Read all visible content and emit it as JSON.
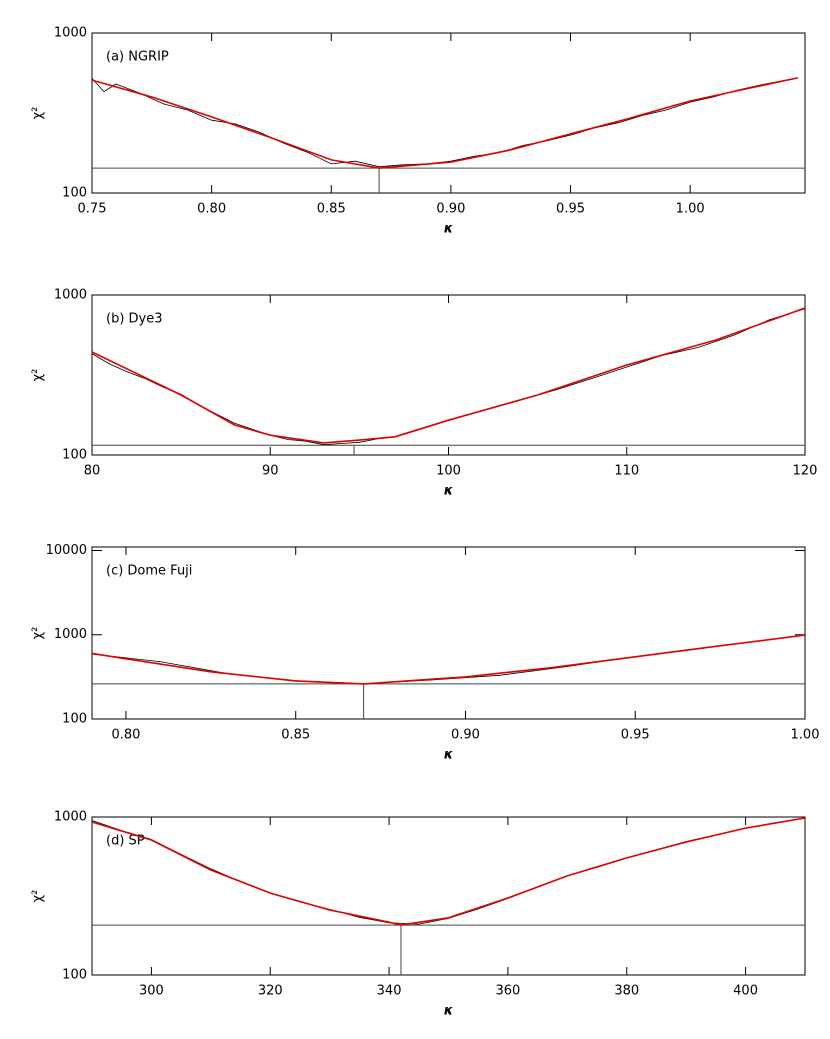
{
  "chart_data": [
    {
      "type": "line",
      "title": "(a) NGRIP",
      "xlabel": "κ",
      "ylabel": "χ²",
      "log_y": true,
      "xlim": [
        0.75,
        1.048
      ],
      "xticks": [
        0.75,
        {
          "value": 0.8,
          "label": "0.80"
        },
        0.85,
        {
          "value": 0.9,
          "label": "0.90"
        },
        0.95,
        {
          "value": 1,
          "label": "1.00"
        }
      ],
      "ylim": [
        100,
        1000
      ],
      "yticks": [
        100,
        1000
      ],
      "min_chi2": 143,
      "best_kappa": 0.87,
      "series": [
        {
          "color": "#000000",
          "x": [
            0.75,
            0.755,
            0.76,
            0.77,
            0.78,
            0.79,
            0.8,
            0.81,
            0.82,
            0.83,
            0.84,
            0.85,
            0.86,
            0.87,
            0.88,
            0.89,
            0.9,
            0.91,
            0.92,
            0.93,
            0.94,
            0.95,
            0.96,
            0.97,
            0.98,
            0.99,
            1.0,
            1.01,
            1.02,
            1.03,
            1.045
          ],
          "values": [
            520,
            430,
            480,
            420,
            360,
            330,
            285,
            270,
            240,
            205,
            180,
            152,
            158,
            146,
            150,
            152,
            158,
            170,
            178,
            198,
            212,
            230,
            255,
            275,
            305,
            330,
            370,
            400,
            440,
            475,
            525
          ]
        },
        {
          "color": "#e00000",
          "x": [
            0.75,
            0.775,
            0.8,
            0.825,
            0.85,
            0.87,
            0.9,
            0.925,
            0.95,
            0.975,
            1.0,
            1.025,
            1.045
          ],
          "values": [
            508,
            398,
            299,
            221,
            161,
            143,
            156,
            186,
            234,
            294,
            376,
            453,
            524
          ]
        }
      ]
    },
    {
      "type": "line",
      "title": "(b) Dye3",
      "xlabel": "κ",
      "ylabel": "χ²",
      "log_y": true,
      "xlim": [
        80,
        120
      ],
      "xticks": [
        80,
        90,
        100,
        110,
        120
      ],
      "ylim": [
        100,
        1000
      ],
      "yticks": [
        100,
        1000
      ],
      "min_chi2": 115,
      "best_kappa": 94.7,
      "series": [
        {
          "color": "#000000",
          "x": [
            80,
            81,
            82,
            83,
            84,
            85,
            86,
            87,
            88,
            89,
            90,
            91,
            92,
            93,
            94,
            95,
            96,
            97,
            98,
            99,
            100,
            102,
            104,
            106,
            108,
            110,
            112,
            114,
            116,
            118,
            120
          ],
          "values": [
            430,
            370,
            330,
            300,
            265,
            240,
            205,
            180,
            158,
            145,
            133,
            125,
            122,
            116,
            118,
            120,
            126,
            130,
            140,
            152,
            165,
            190,
            220,
            255,
            300,
            355,
            420,
            470,
            560,
            700,
            820
          ]
        },
        {
          "color": "#e00000",
          "x": [
            80,
            85,
            88,
            90,
            93,
            95,
            97,
            100,
            105,
            110,
            115,
            120
          ],
          "values": [
            440,
            237,
            154,
            133,
            119,
            124,
            130,
            165,
            237,
            365,
            523,
            829
          ]
        }
      ]
    },
    {
      "type": "line",
      "title": "(c) Dome Fuji",
      "xlabel": "κ",
      "ylabel": "χ²",
      "log_y": true,
      "xlim": [
        0.79,
        1.0
      ],
      "xticks": [
        {
          "value": 0.8,
          "label": "0.80"
        },
        0.85,
        {
          "value": 0.9,
          "label": "0.90"
        },
        0.95,
        {
          "value": 1,
          "label": "1.00"
        }
      ],
      "ylim": [
        100,
        11000
      ],
      "yticks": [
        100,
        1000,
        10000
      ],
      "min_chi2": 261,
      "best_kappa": 0.87,
      "series": [
        {
          "color": "#000000",
          "x": [
            0.79,
            0.81,
            0.83,
            0.85,
            0.87,
            0.89,
            0.91,
            0.93,
            0.95,
            0.97,
            0.99,
            1.0
          ],
          "values": [
            590,
            480,
            345,
            285,
            262,
            290,
            330,
            420,
            550,
            700,
            880,
            990
          ]
        },
        {
          "color": "#e00000",
          "x": [
            0.79,
            0.8,
            0.825,
            0.85,
            0.87,
            0.9,
            0.925,
            0.95,
            0.975,
            1.0
          ],
          "values": [
            600,
            518,
            363,
            283,
            261,
            316,
            405,
            547,
            739,
            990
          ]
        }
      ]
    },
    {
      "type": "line",
      "title": "(d) SP",
      "xlabel": "κ",
      "ylabel": "χ²",
      "log_y": true,
      "xlim": [
        290,
        410
      ],
      "xticks": [
        300,
        320,
        340,
        360,
        380,
        400
      ],
      "ylim": [
        100,
        1000
      ],
      "yticks": [
        100,
        1000
      ],
      "min_chi2": 207,
      "best_kappa": 342,
      "series": [
        {
          "color": "#000000",
          "x": [
            290,
            295,
            300,
            305,
            310,
            315,
            320,
            325,
            330,
            335,
            340,
            345,
            350,
            355,
            360,
            365,
            370,
            375,
            380,
            385,
            390,
            395,
            400,
            405,
            410
          ],
          "values": [
            950,
            820,
            720,
            580,
            470,
            390,
            330,
            290,
            260,
            232,
            214,
            210,
            228,
            262,
            305,
            360,
            425,
            480,
            550,
            620,
            700,
            770,
            850,
            920,
            985
          ]
        },
        {
          "color": "#e00000",
          "x": [
            290,
            300,
            310,
            320,
            330,
            340,
            342,
            350,
            360,
            370,
            380,
            390,
            400,
            410
          ],
          "values": [
            930,
            715,
            462,
            330,
            258,
            216,
            207,
            230,
            307,
            424,
            551,
            695,
            851,
            985
          ]
        }
      ]
    }
  ]
}
